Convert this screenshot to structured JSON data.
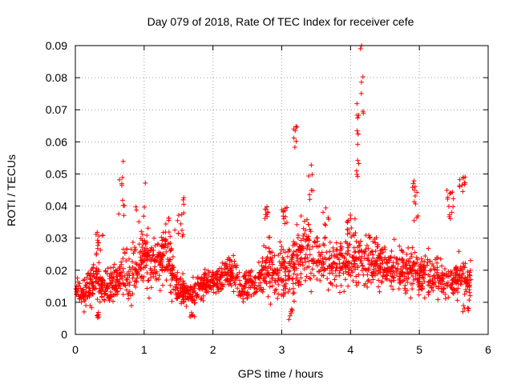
{
  "chart_data": {
    "type": "scatter",
    "title": "Day 079 of 2018, Rate Of TEC Index for receiver cefe",
    "xlabel": "GPS time / hours",
    "ylabel": "ROTI / TECUs",
    "xlim": [
      0,
      6
    ],
    "ylim": [
      0,
      0.09
    ],
    "xticks": [
      0,
      1,
      2,
      3,
      4,
      5,
      6
    ],
    "xtick_labels": [
      "0",
      "1",
      "2",
      "3",
      "4",
      "5",
      "6"
    ],
    "yticks": [
      0,
      0.01,
      0.02,
      0.03,
      0.04,
      0.05,
      0.06,
      0.07,
      0.08,
      0.09
    ],
    "ytick_labels": [
      "0",
      "0.01",
      "0.02",
      "0.03",
      "0.04",
      "0.05",
      "0.06",
      "0.07",
      "0.08",
      "0.09"
    ],
    "grid": true,
    "marker": "+",
    "color": "#ff0000",
    "envelope": {
      "x": [
        0.0,
        0.1,
        0.2,
        0.3,
        0.4,
        0.5,
        0.6,
        0.7,
        0.8,
        0.9,
        1.0,
        1.1,
        1.2,
        1.3,
        1.4,
        1.5,
        1.6,
        1.7,
        1.8,
        1.9,
        2.0,
        2.1,
        2.2,
        2.3,
        2.4,
        2.5,
        2.6,
        2.7,
        2.8,
        2.9,
        3.0,
        3.1,
        3.2,
        3.3,
        3.4,
        3.5,
        3.6,
        3.7,
        3.8,
        3.9,
        4.0,
        4.1,
        4.2,
        4.3,
        4.4,
        4.5,
        4.6,
        4.7,
        4.8,
        4.9,
        5.0,
        5.1,
        5.2,
        5.3,
        5.4,
        5.5,
        5.6,
        5.7,
        5.75
      ],
      "center": [
        0.014,
        0.013,
        0.015,
        0.019,
        0.014,
        0.015,
        0.016,
        0.019,
        0.016,
        0.022,
        0.025,
        0.021,
        0.022,
        0.026,
        0.019,
        0.014,
        0.013,
        0.012,
        0.015,
        0.016,
        0.017,
        0.016,
        0.019,
        0.02,
        0.014,
        0.016,
        0.015,
        0.018,
        0.022,
        0.018,
        0.02,
        0.02,
        0.022,
        0.026,
        0.027,
        0.025,
        0.024,
        0.023,
        0.022,
        0.024,
        0.024,
        0.024,
        0.022,
        0.022,
        0.023,
        0.021,
        0.021,
        0.02,
        0.02,
        0.021,
        0.019,
        0.018,
        0.018,
        0.018,
        0.017,
        0.016,
        0.018,
        0.017,
        0.018
      ],
      "spread": [
        0.003,
        0.004,
        0.005,
        0.006,
        0.005,
        0.005,
        0.007,
        0.008,
        0.008,
        0.009,
        0.009,
        0.008,
        0.007,
        0.008,
        0.006,
        0.004,
        0.004,
        0.004,
        0.004,
        0.004,
        0.004,
        0.004,
        0.005,
        0.006,
        0.005,
        0.005,
        0.005,
        0.006,
        0.008,
        0.006,
        0.008,
        0.008,
        0.009,
        0.01,
        0.01,
        0.009,
        0.008,
        0.008,
        0.007,
        0.008,
        0.008,
        0.008,
        0.008,
        0.008,
        0.008,
        0.007,
        0.007,
        0.007,
        0.007,
        0.007,
        0.006,
        0.006,
        0.006,
        0.006,
        0.006,
        0.005,
        0.006,
        0.005,
        0.005
      ]
    },
    "points_per_hour": 330,
    "spikes": [
      {
        "x": [
          0.3,
          0.4
        ],
        "y": [
          0.026,
          0.033
        ]
      },
      {
        "x": [
          0.62,
          0.72
        ],
        "y": [
          0.034,
          0.055
        ]
      },
      {
        "x": [
          0.88,
          1.12
        ],
        "y": [
          0.03,
          0.05
        ]
      },
      {
        "x": [
          1.25,
          1.45
        ],
        "y": [
          0.026,
          0.037
        ]
      },
      {
        "x": [
          1.48,
          1.58
        ],
        "y": [
          0.03,
          0.043
        ]
      },
      {
        "x": [
          2.75,
          2.8
        ],
        "y": [
          0.036,
          0.04
        ]
      },
      {
        "x": [
          3.0,
          3.08
        ],
        "y": [
          0.034,
          0.04
        ]
      },
      {
        "x": [
          3.17,
          3.22
        ],
        "y": [
          0.057,
          0.066
        ]
      },
      {
        "x": [
          3.38,
          3.46
        ],
        "y": [
          0.042,
          0.054
        ]
      },
      {
        "x": [
          3.6,
          3.7
        ],
        "y": [
          0.034,
          0.04
        ]
      },
      {
        "x": [
          3.95,
          4.02
        ],
        "y": [
          0.03,
          0.038
        ]
      },
      {
        "x": [
          4.08,
          4.12
        ],
        "y": [
          0.046,
          0.073
        ]
      },
      {
        "x": [
          4.14,
          4.2
        ],
        "y": [
          0.062,
          0.09
        ]
      },
      {
        "x": [
          4.9,
          4.98
        ],
        "y": [
          0.035,
          0.048
        ]
      },
      {
        "x": [
          5.4,
          5.5
        ],
        "y": [
          0.036,
          0.045
        ]
      },
      {
        "x": [
          5.58,
          5.68
        ],
        "y": [
          0.044,
          0.05
        ]
      }
    ],
    "lows": [
      {
        "x": [
          0.3,
          0.38
        ],
        "y": [
          0.005,
          0.007
        ]
      },
      {
        "x": [
          1.65,
          1.75
        ],
        "y": [
          0.005,
          0.007
        ]
      },
      {
        "x": [
          3.08,
          3.16
        ],
        "y": [
          0.004,
          0.008
        ]
      },
      {
        "x": [
          5.62,
          5.72
        ],
        "y": [
          0.007,
          0.009
        ]
      }
    ],
    "seed": 79
  }
}
